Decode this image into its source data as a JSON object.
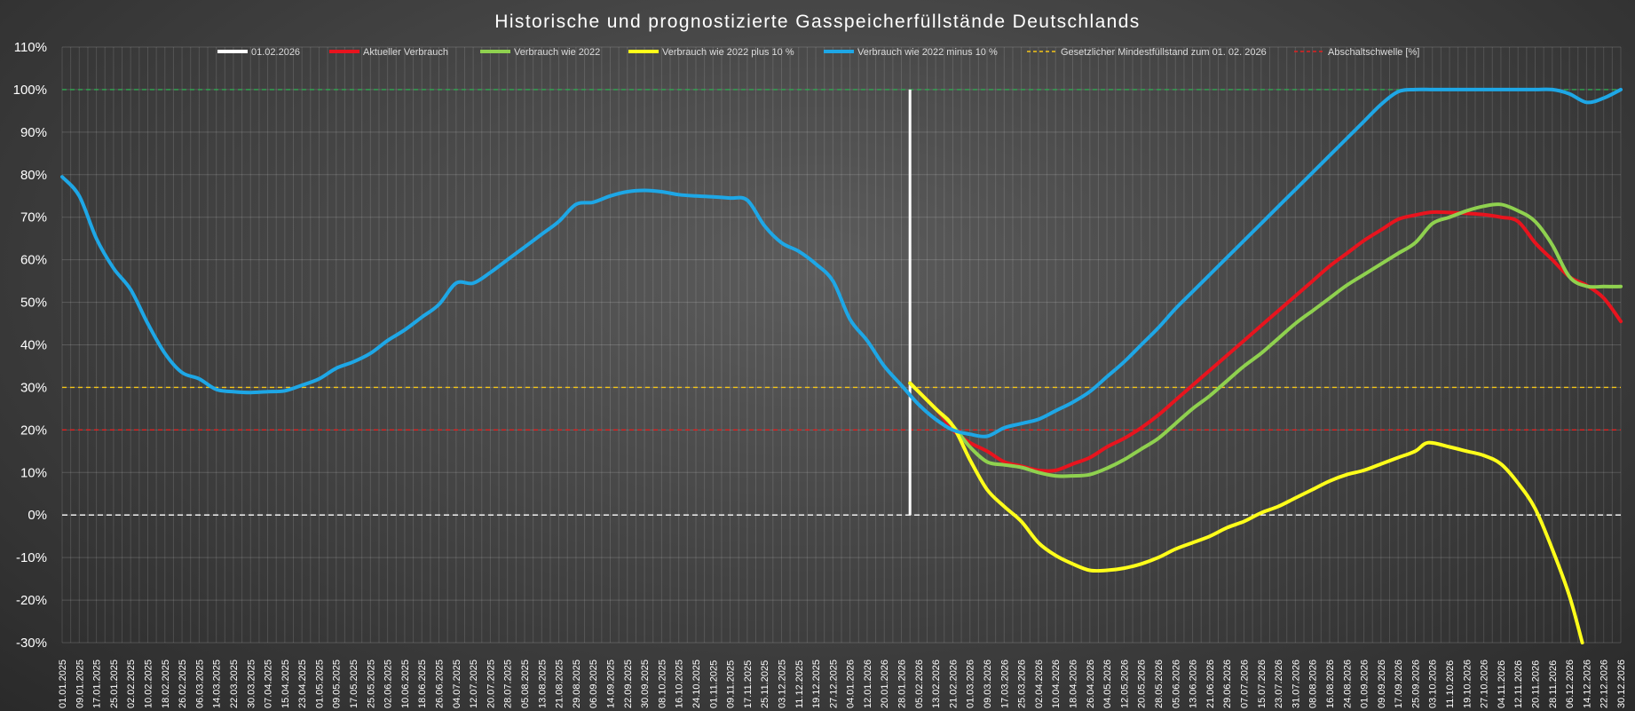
{
  "chart_data": {
    "type": "line",
    "title": "Historische und prognostizierte Gasspeicherfüllstände Deutschlands",
    "xlabel": "",
    "ylabel": "",
    "ylim": [
      -30,
      110
    ],
    "y_unit": "%",
    "y_ticks": [
      "110%",
      "100%",
      "90%",
      "80%",
      "70%",
      "60%",
      "50%",
      "40%",
      "30%",
      "20%",
      "10%",
      "0%",
      "-10%",
      "-20%",
      "-30%"
    ],
    "x_range": [
      "2025-01-01",
      "2026-12-30"
    ],
    "x_ticks": [
      "01.01.2025",
      "09.01.2025",
      "17.01.2025",
      "25.01.2025",
      "02.02.2025",
      "10.02.2025",
      "18.02.2025",
      "26.02.2025",
      "06.03.2025",
      "14.03.2025",
      "22.03.2025",
      "30.03.2025",
      "07.04.2025",
      "15.04.2025",
      "23.04.2025",
      "01.05.2025",
      "09.05.2025",
      "17.05.2025",
      "25.05.2025",
      "02.06.2025",
      "10.06.2025",
      "18.06.2025",
      "26.06.2025",
      "04.07.2025",
      "12.07.2025",
      "20.07.2025",
      "28.07.2025",
      "05.08.2025",
      "13.08.2025",
      "21.08.2025",
      "29.08.2025",
      "06.09.2025",
      "14.09.2025",
      "22.09.2025",
      "30.09.2025",
      "08.10.2025",
      "16.10.2025",
      "24.10.2025",
      "01.11.2025",
      "09.11.2025",
      "17.11.2025",
      "25.11.2025",
      "03.12.2025",
      "11.12.2025",
      "19.12.2025",
      "27.12.2025",
      "04.01.2026",
      "12.01.2026",
      "20.01.2026",
      "28.01.2026",
      "05.02.2026",
      "13.02.2026",
      "21.02.2026",
      "01.03.2026",
      "09.03.2026",
      "17.03.2026",
      "25.03.2026",
      "02.04.2026",
      "10.04.2026",
      "18.04.2026",
      "26.04.2026",
      "04.05.2026",
      "12.05.2026",
      "20.05.2026",
      "28.05.2026",
      "05.06.2026",
      "13.06.2026",
      "21.06.2026",
      "29.06.2026",
      "07.07.2026",
      "15.07.2026",
      "23.07.2026",
      "31.07.2026",
      "08.08.2026",
      "16.08.2026",
      "24.08.2026",
      "01.09.2026",
      "09.09.2026",
      "17.09.2026",
      "25.09.2026",
      "03.10.2026",
      "11.10.2026",
      "19.10.2026",
      "27.10.2026",
      "04.11.2026",
      "12.11.2026",
      "20.11.2026",
      "28.11.2026",
      "06.12.2026",
      "14.12.2026",
      "22.12.2026",
      "30.12.2026"
    ],
    "grid": true,
    "legend_position": "top",
    "vertical_marker": {
      "name": "01.02.2026",
      "x": "2026-02-01",
      "color": "#ffffff"
    },
    "reference_lines": [
      {
        "name": "Gesetzlicher Mindestfüllstand zum 01. 02. 2026",
        "y": 30,
        "color": "#f5c518",
        "style": "dashed"
      },
      {
        "name": "Abschaltschwelle [%]",
        "y": 20,
        "color": "#e02020",
        "style": "dashed"
      },
      {
        "name": "",
        "y": 100,
        "color": "#2fa84f",
        "style": "dashed"
      },
      {
        "name": "",
        "y": 0,
        "color": "#ffffff",
        "style": "dashed"
      }
    ],
    "series": [
      {
        "name": "Aktueller Verbrauch",
        "color": "#e8141e",
        "x": [
          "2026-02-01",
          "2026-02-13",
          "2026-02-21",
          "2026-03-01",
          "2026-03-09",
          "2026-03-17",
          "2026-03-25",
          "2026-04-02",
          "2026-04-10",
          "2026-04-18",
          "2026-04-26",
          "2026-05-04",
          "2026-05-12",
          "2026-05-20",
          "2026-05-28",
          "2026-06-05",
          "2026-06-13",
          "2026-06-21",
          "2026-06-29",
          "2026-07-07",
          "2026-07-15",
          "2026-07-23",
          "2026-07-31",
          "2026-08-08",
          "2026-08-16",
          "2026-08-24",
          "2026-09-01",
          "2026-09-09",
          "2026-09-17",
          "2026-09-25",
          "2026-10-03",
          "2026-10-11",
          "2026-10-19",
          "2026-10-27",
          "2026-11-04",
          "2026-11-12",
          "2026-11-20",
          "2026-11-28",
          "2026-12-06",
          "2026-12-14",
          "2026-12-22",
          "2026-12-30"
        ],
        "values": [
          31,
          25,
          20,
          17,
          15,
          12.5,
          11.5,
          10.5,
          10.5,
          12,
          13.5,
          16,
          18,
          20.5,
          23.5,
          27,
          30.5,
          34,
          37.5,
          41,
          44.5,
          48,
          51.5,
          55,
          58.5,
          61.5,
          64.5,
          67,
          69.5,
          70.5,
          71.2,
          71.1,
          70.9,
          70.6,
          70,
          69,
          64,
          60,
          56,
          54,
          51,
          45.5
        ]
      },
      {
        "name": "Verbrauch wie 2022",
        "color": "#8fd14f",
        "x": [
          "2026-02-01",
          "2026-02-13",
          "2026-02-21",
          "2026-03-01",
          "2026-03-09",
          "2026-03-17",
          "2026-03-25",
          "2026-04-02",
          "2026-04-10",
          "2026-04-18",
          "2026-04-26",
          "2026-05-04",
          "2026-05-12",
          "2026-05-20",
          "2026-05-28",
          "2026-06-05",
          "2026-06-13",
          "2026-06-21",
          "2026-06-29",
          "2026-07-07",
          "2026-07-15",
          "2026-07-23",
          "2026-07-31",
          "2026-08-08",
          "2026-08-16",
          "2026-08-24",
          "2026-09-01",
          "2026-09-09",
          "2026-09-17",
          "2026-09-25",
          "2026-10-03",
          "2026-10-11",
          "2026-10-19",
          "2026-10-27",
          "2026-11-04",
          "2026-11-12",
          "2026-11-20",
          "2026-11-28",
          "2026-12-06",
          "2026-12-14",
          "2026-12-22",
          "2026-12-30"
        ],
        "values": [
          31,
          25,
          21,
          16,
          12.5,
          11.8,
          11.2,
          10,
          9.2,
          9.2,
          9.5,
          11,
          13,
          15.5,
          18,
          21.5,
          25,
          28,
          31.5,
          35,
          38,
          41.5,
          45,
          48,
          51,
          54,
          56.5,
          59,
          61.5,
          64,
          68.5,
          70,
          71.5,
          72.6,
          73,
          71.5,
          69,
          63.5,
          56,
          53.8,
          53.7,
          53.7
        ]
      },
      {
        "name": "Verbrauch wie 2022 plus 10 %",
        "color": "#ffff1a",
        "x": [
          "2026-02-01",
          "2026-02-13",
          "2026-02-21",
          "2026-03-01",
          "2026-03-09",
          "2026-03-17",
          "2026-03-25",
          "2026-04-02",
          "2026-04-10",
          "2026-04-18",
          "2026-04-26",
          "2026-05-04",
          "2026-05-12",
          "2026-05-20",
          "2026-05-28",
          "2026-06-05",
          "2026-06-13",
          "2026-06-21",
          "2026-06-29",
          "2026-07-07",
          "2026-07-15",
          "2026-07-23",
          "2026-07-31",
          "2026-08-08",
          "2026-08-16",
          "2026-08-24",
          "2026-09-01",
          "2026-09-09",
          "2026-09-17",
          "2026-09-25",
          "2026-10-01",
          "2026-10-11",
          "2026-10-19",
          "2026-10-27",
          "2026-11-04",
          "2026-11-12",
          "2026-11-20",
          "2026-11-28",
          "2026-12-06",
          "2026-12-12"
        ],
        "values": [
          31,
          25,
          21,
          13,
          6,
          2,
          -1.5,
          -6.5,
          -9.5,
          -11.5,
          -13,
          -13,
          -12.5,
          -11.5,
          -10,
          -8,
          -6.5,
          -5,
          -3,
          -1.5,
          0.5,
          2,
          4,
          6,
          8,
          9.5,
          10.5,
          12,
          13.5,
          15,
          17,
          16,
          15,
          14,
          12,
          7.5,
          1.5,
          -8,
          -19,
          -30
        ]
      },
      {
        "name": "Verbrauch wie 2022 minus 10 %",
        "color": "#1ea7e6",
        "x": [
          "2025-01-01",
          "2025-01-09",
          "2025-01-17",
          "2025-01-25",
          "2025-02-02",
          "2025-02-10",
          "2025-02-18",
          "2025-02-26",
          "2025-03-06",
          "2025-03-14",
          "2025-03-22",
          "2025-03-30",
          "2025-04-07",
          "2025-04-15",
          "2025-04-23",
          "2025-05-01",
          "2025-05-09",
          "2025-05-17",
          "2025-05-25",
          "2025-06-02",
          "2025-06-10",
          "2025-06-18",
          "2025-06-26",
          "2025-07-04",
          "2025-07-12",
          "2025-07-20",
          "2025-07-28",
          "2025-08-05",
          "2025-08-13",
          "2025-08-21",
          "2025-08-29",
          "2025-09-06",
          "2025-09-14",
          "2025-09-22",
          "2025-09-30",
          "2025-10-08",
          "2025-10-16",
          "2025-10-24",
          "2025-11-01",
          "2025-11-09",
          "2025-11-17",
          "2025-11-25",
          "2025-12-03",
          "2025-12-11",
          "2025-12-19",
          "2025-12-27",
          "2026-01-04",
          "2026-01-12",
          "2026-01-20",
          "2026-01-28",
          "2026-02-05",
          "2026-02-13",
          "2026-02-21",
          "2026-03-01",
          "2026-03-09",
          "2026-03-17",
          "2026-03-25",
          "2026-04-02",
          "2026-04-10",
          "2026-04-18",
          "2026-04-26",
          "2026-05-04",
          "2026-05-12",
          "2026-05-20",
          "2026-05-28",
          "2026-06-05",
          "2026-06-13",
          "2026-06-21",
          "2026-06-29",
          "2026-07-07",
          "2026-07-15",
          "2026-07-23",
          "2026-07-31",
          "2026-08-08",
          "2026-08-16",
          "2026-08-24",
          "2026-09-01",
          "2026-09-09",
          "2026-09-17",
          "2026-09-25",
          "2026-10-03",
          "2026-10-11",
          "2026-10-19",
          "2026-10-27",
          "2026-11-04",
          "2026-11-12",
          "2026-11-20",
          "2026-11-28",
          "2026-12-06",
          "2026-12-14",
          "2026-12-22",
          "2026-12-30"
        ],
        "values": [
          79.5,
          75,
          65,
          58,
          53,
          45,
          38,
          33.5,
          32,
          29.5,
          29,
          28.8,
          29,
          29.2,
          30.5,
          32,
          34.5,
          36,
          38,
          41,
          43.5,
          46.5,
          49.5,
          54.5,
          54.5,
          57,
          60,
          63,
          66,
          69,
          73,
          73.5,
          75,
          76,
          76.3,
          76,
          75.3,
          75,
          74.8,
          74.5,
          74,
          68,
          64,
          62,
          59,
          55,
          46,
          41,
          35,
          30.5,
          26,
          22.5,
          20,
          19,
          18.5,
          20.5,
          21.5,
          22.5,
          24.5,
          26.5,
          29,
          32.5,
          36,
          40,
          44,
          48.5,
          52.5,
          56.5,
          60.5,
          64.5,
          68.5,
          72.5,
          76.5,
          80.5,
          84.5,
          88.5,
          92.5,
          96.5,
          99.5,
          100,
          100,
          100,
          100,
          100,
          100,
          100,
          100,
          100,
          99,
          97,
          98,
          100
        ]
      }
    ]
  }
}
